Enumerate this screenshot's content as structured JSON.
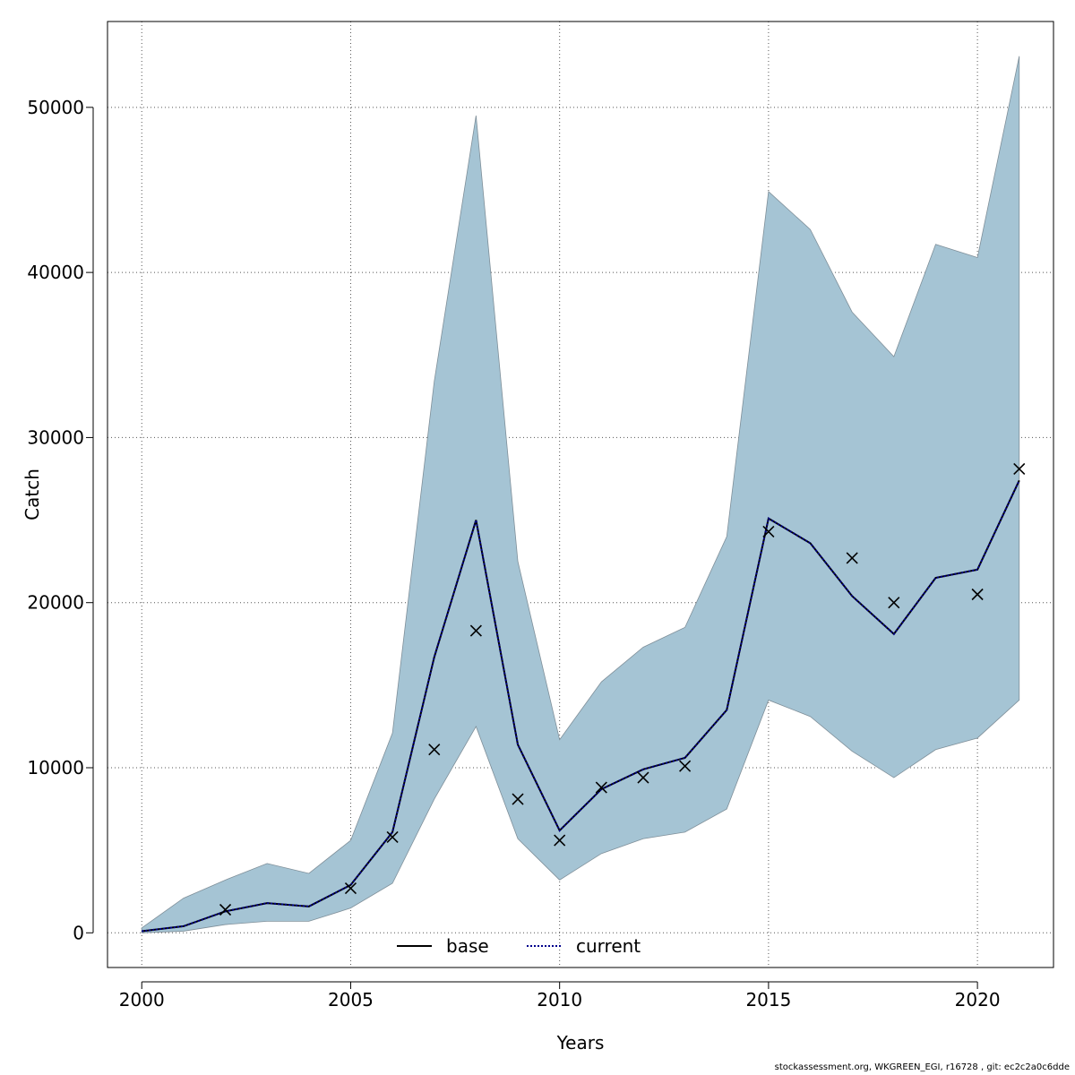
{
  "chart_data": {
    "type": "line",
    "title": "",
    "xlabel": "Years",
    "ylabel": "Catch",
    "xlim": [
      1999.18,
      2021.82
    ],
    "ylim": [
      -2100,
      55200
    ],
    "x_ticks": [
      2000,
      2005,
      2010,
      2015,
      2020
    ],
    "y_ticks": [
      0,
      10000,
      20000,
      30000,
      40000,
      50000
    ],
    "grid": true,
    "legend_position": "bottom-center",
    "colors": {
      "band": "#a5c4d4",
      "band_edge": "#7f8f99",
      "current_line": "#00008b",
      "points": "#000000"
    },
    "years": [
      2000,
      2001,
      2002,
      2003,
      2004,
      2005,
      2006,
      2007,
      2008,
      2009,
      2010,
      2011,
      2012,
      2013,
      2014,
      2015,
      2016,
      2017,
      2018,
      2019,
      2020,
      2021
    ],
    "band_upper": [
      300,
      2100,
      3200,
      4200,
      3600,
      5600,
      12100,
      33400,
      49500,
      22500,
      11700,
      15200,
      17300,
      18500,
      24000,
      44900,
      42600,
      37600,
      34900,
      41700,
      40900,
      53100
    ],
    "band_lower": [
      0,
      100,
      500,
      700,
      700,
      1500,
      3000,
      8100,
      12500,
      5700,
      3200,
      4800,
      5700,
      6100,
      7500,
      14100,
      13100,
      11000,
      9400,
      11100,
      11800,
      14100
    ],
    "series": [
      {
        "name": "base",
        "style": "solid",
        "values": [
          100,
          400,
          1300,
          1800,
          1600,
          2900,
          6100,
          16700,
          25000,
          11400,
          6200,
          8700,
          9900,
          10600,
          13500,
          25100,
          23600,
          20400,
          18100,
          21500,
          22000,
          27400
        ]
      },
      {
        "name": "current",
        "style": "dotted",
        "values": [
          100,
          400,
          1300,
          1800,
          1600,
          2900,
          6100,
          16700,
          25000,
          11400,
          6200,
          8700,
          9900,
          10600,
          13500,
          25100,
          23600,
          20400,
          18100,
          21500,
          22000,
          27400
        ]
      }
    ],
    "observed": {
      "years": [
        2002,
        2005,
        2006,
        2007,
        2008,
        2009,
        2010,
        2011,
        2012,
        2013,
        2015,
        2017,
        2018,
        2020,
        2021
      ],
      "values": [
        1400,
        2700,
        5800,
        11100,
        18300,
        8100,
        5600,
        8800,
        9400,
        10100,
        24300,
        22700,
        20000,
        20500,
        28100
      ]
    }
  },
  "footer": "stockassessment.org, WKGREEN_EGI, r16728 , git: ec2c2a0c6dde"
}
